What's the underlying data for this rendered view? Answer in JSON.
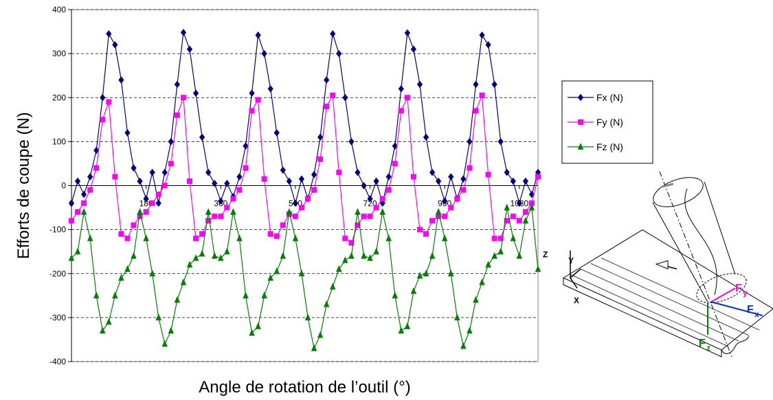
{
  "chart_data": {
    "type": "line",
    "x_label": "Angle de rotation de l’outil (°)",
    "y_label": "Efforts de coupe (N)",
    "x": [
      0,
      15,
      30,
      45,
      60,
      75,
      90,
      105,
      120,
      135,
      150,
      165,
      180,
      195,
      210,
      225,
      240,
      255,
      270,
      285,
      300,
      315,
      330,
      345,
      360,
      375,
      390,
      405,
      420,
      435,
      450,
      465,
      480,
      495,
      510,
      525,
      540,
      555,
      570,
      585,
      600,
      615,
      630,
      645,
      660,
      675,
      690,
      705,
      720,
      735,
      750,
      765,
      780,
      795,
      810,
      825,
      840,
      855,
      870,
      885,
      900,
      915,
      930,
      945,
      960,
      975,
      990,
      1005,
      1020,
      1035,
      1050,
      1065,
      1080,
      1095,
      1110,
      1125
    ],
    "series": [
      {
        "name": "Fx (N)",
        "color": "#000080",
        "marker": "diamond",
        "values": [
          -40,
          10,
          -20,
          20,
          80,
          200,
          345,
          320,
          240,
          120,
          40,
          10,
          -30,
          30,
          -40,
          30,
          100,
          230,
          348,
          310,
          210,
          110,
          30,
          5,
          -35,
          5,
          -25,
          20,
          90,
          210,
          342,
          300,
          220,
          120,
          35,
          10,
          -40,
          15,
          -30,
          25,
          110,
          240,
          345,
          300,
          200,
          100,
          30,
          0,
          -30,
          10,
          -40,
          20,
          90,
          220,
          347,
          310,
          230,
          110,
          30,
          10,
          -35,
          20,
          -30,
          15,
          100,
          230,
          342,
          320,
          230,
          100,
          30,
          10,
          -40,
          10,
          -20,
          30
        ]
      },
      {
        "name": "Fy (N)",
        "color": "#ff00ff",
        "marker": "square",
        "values": [
          -80,
          -60,
          -40,
          -10,
          40,
          150,
          190,
          20,
          -110,
          -120,
          -90,
          -70,
          -60,
          -40,
          -20,
          0,
          50,
          160,
          200,
          10,
          -120,
          -110,
          -80,
          -70,
          -70,
          -50,
          -30,
          -10,
          40,
          170,
          195,
          15,
          -110,
          -115,
          -90,
          -65,
          -70,
          -50,
          -30,
          -10,
          60,
          180,
          205,
          30,
          -120,
          -130,
          -90,
          -70,
          -70,
          -50,
          -30,
          -10,
          50,
          170,
          200,
          20,
          -100,
          -110,
          -80,
          -70,
          -70,
          -50,
          -30,
          -10,
          40,
          170,
          205,
          25,
          -120,
          -120,
          -80,
          -70,
          -80,
          -60,
          -40,
          20
        ]
      },
      {
        "name": "Fz (N)",
        "color": "#008000",
        "marker": "triangle",
        "values": [
          -165,
          -150,
          -60,
          -120,
          -250,
          -330,
          -310,
          -250,
          -210,
          -190,
          -160,
          -60,
          -120,
          -200,
          -300,
          -360,
          -330,
          -260,
          -220,
          -180,
          -165,
          -155,
          -60,
          -160,
          -165,
          -150,
          -60,
          -120,
          -250,
          -335,
          -320,
          -250,
          -210,
          -195,
          -160,
          -60,
          -120,
          -200,
          -300,
          -370,
          -340,
          -270,
          -230,
          -190,
          -170,
          -160,
          -60,
          -160,
          -165,
          -150,
          -60,
          -120,
          -250,
          -330,
          -320,
          -240,
          -205,
          -200,
          -160,
          -60,
          -120,
          -200,
          -300,
          -365,
          -330,
          -260,
          -220,
          -180,
          -160,
          -150,
          -50,
          -120,
          -160,
          -80,
          -50,
          -190
        ]
      }
    ],
    "xlim": [
      0,
      1125
    ],
    "ylim": [
      -400,
      400
    ],
    "xticks": [
      0,
      180,
      360,
      540,
      720,
      900,
      1080
    ],
    "yticks": [
      -400,
      -300,
      -200,
      -100,
      0,
      100,
      200,
      300,
      400
    ],
    "grid": true,
    "legend": "right"
  },
  "illustration": {
    "axes": [
      "Z",
      "Y",
      "X"
    ],
    "forces": [
      {
        "base": "F",
        "sub": "y",
        "color": "#ff00ff"
      },
      {
        "base": "F",
        "sub": "x",
        "color": "#0033cc"
      },
      {
        "base": "F",
        "sub": "z",
        "color": "#008000"
      }
    ]
  }
}
